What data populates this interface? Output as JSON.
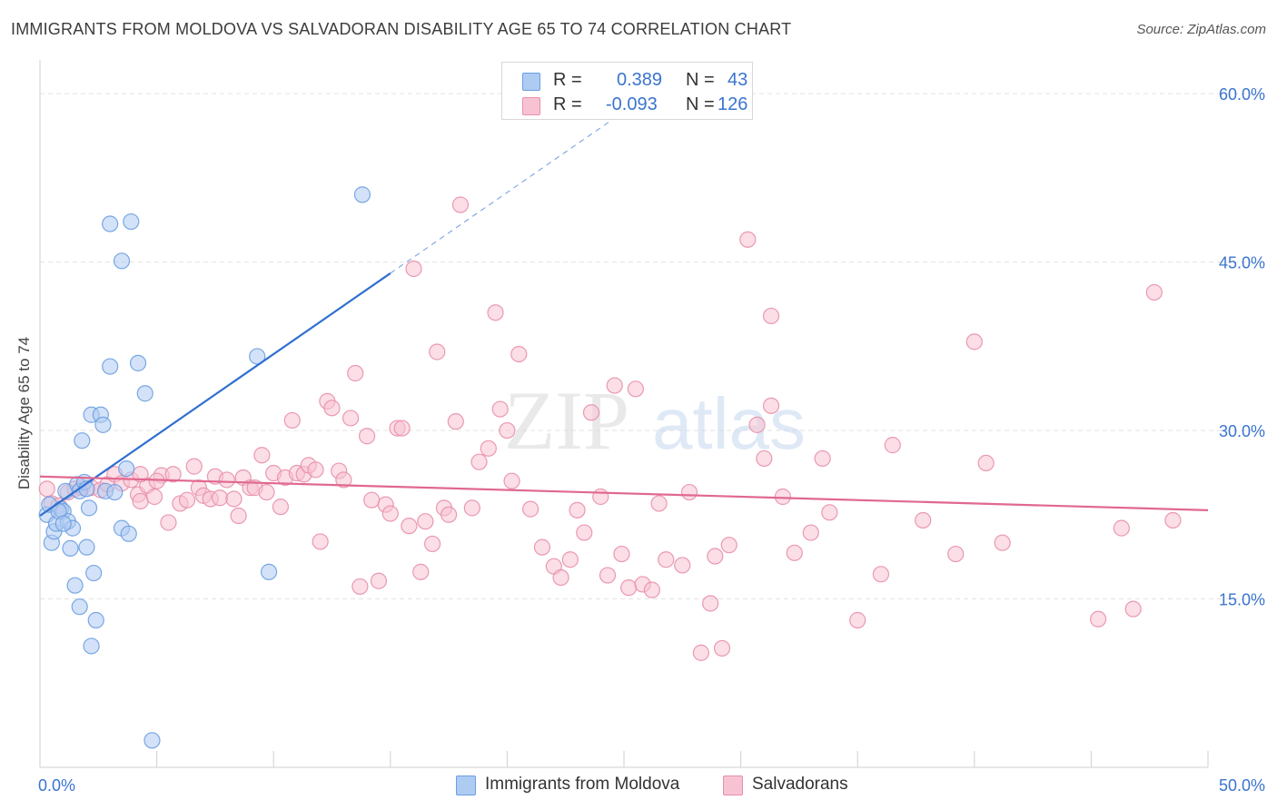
{
  "title": "IMMIGRANTS FROM MOLDOVA VS SALVADORAN DISABILITY AGE 65 TO 74 CORRELATION CHART",
  "source": "Source: ZipAtlas.com",
  "watermark": {
    "zip": "ZIP",
    "atlas": "atlas"
  },
  "legend": {
    "rows": [
      {
        "r_label": "R =",
        "r_value": "0.389",
        "n_label": "N =",
        "n_value": "43"
      },
      {
        "r_label": "R =",
        "r_value": "-0.093",
        "n_label": "N =",
        "n_value": "126"
      }
    ]
  },
  "colors": {
    "blue_fill": "#aecbf2",
    "blue_stroke": "#6b9ee0",
    "blue_line": "#2f6fcf",
    "pink_fill": "#f7c3d2",
    "pink_stroke": "#e88fab",
    "pink_line": "#e06890",
    "tick_text": "#3a74d0",
    "grid": "#e2e2e2"
  },
  "chart_data": {
    "type": "scatter",
    "title": "IMMIGRANTS FROM MOLDOVA VS SALVADORAN DISABILITY AGE 65 TO 74 CORRELATION CHART",
    "xlabel": "",
    "ylabel": "Disability Age 65 to 74",
    "xlim": [
      0,
      50
    ],
    "ylim": [
      0,
      63
    ],
    "x_tick_labels": [
      {
        "value": 0,
        "label": "0.0%"
      },
      {
        "value": 50,
        "label": "50.0%"
      }
    ],
    "y_tick_labels": [
      {
        "value": 15,
        "label": "15.0%"
      },
      {
        "value": 30,
        "label": "30.0%"
      },
      {
        "value": 45,
        "label": "45.0%"
      },
      {
        "value": 60,
        "label": "60.0%"
      }
    ],
    "y_grid": [
      15,
      30,
      45,
      60
    ],
    "grid": true,
    "legend_position": "top-center",
    "series": [
      {
        "name": "Immigrants from Moldova",
        "color": "blue",
        "R": 0.389,
        "N": 43,
        "trend": {
          "x0": 0.0,
          "y0": 22.4,
          "x1": 15.0,
          "y1": 44.0,
          "dashed_to_x": 25.0,
          "dashed_to_y": 58.4
        },
        "points": [
          [
            0.3,
            22.5
          ],
          [
            0.4,
            23.4
          ],
          [
            0.5,
            20.0
          ],
          [
            0.6,
            21.0
          ],
          [
            0.7,
            21.7
          ],
          [
            0.9,
            23.0
          ],
          [
            1.0,
            22.8
          ],
          [
            1.1,
            24.6
          ],
          [
            1.2,
            21.9
          ],
          [
            1.3,
            19.5
          ],
          [
            1.4,
            21.3
          ],
          [
            1.5,
            16.2
          ],
          [
            1.6,
            25.2
          ],
          [
            1.7,
            24.6
          ],
          [
            1.7,
            14.3
          ],
          [
            1.8,
            29.1
          ],
          [
            1.9,
            25.4
          ],
          [
            2.0,
            19.6
          ],
          [
            2.1,
            23.1
          ],
          [
            2.2,
            10.8
          ],
          [
            2.2,
            31.4
          ],
          [
            2.3,
            17.3
          ],
          [
            2.4,
            13.1
          ],
          [
            2.6,
            31.4
          ],
          [
            2.7,
            30.5
          ],
          [
            2.8,
            24.6
          ],
          [
            3.0,
            35.7
          ],
          [
            3.0,
            48.4
          ],
          [
            3.2,
            24.5
          ],
          [
            3.5,
            21.3
          ],
          [
            3.5,
            45.1
          ],
          [
            3.7,
            26.6
          ],
          [
            3.8,
            20.8
          ],
          [
            3.9,
            48.6
          ],
          [
            4.2,
            36.0
          ],
          [
            4.5,
            33.3
          ],
          [
            4.8,
            2.4
          ],
          [
            9.3,
            36.6
          ],
          [
            9.8,
            17.4
          ],
          [
            13.8,
            51.0
          ],
          [
            0.8,
            22.8
          ],
          [
            1.0,
            21.7
          ],
          [
            2.0,
            24.8
          ]
        ]
      },
      {
        "name": "Salvadorans",
        "color": "pink",
        "R": -0.093,
        "N": 126,
        "trend": {
          "x0": 0.0,
          "y0": 25.9,
          "x1": 50.0,
          "y1": 22.9
        },
        "points": [
          [
            0.3,
            24.8
          ],
          [
            0.5,
            23.5
          ],
          [
            0.8,
            23.3
          ],
          [
            1.2,
            24.5
          ],
          [
            1.5,
            24.8
          ],
          [
            1.8,
            24.9
          ],
          [
            2.2,
            24.9
          ],
          [
            2.6,
            24.7
          ],
          [
            2.9,
            25.2
          ],
          [
            3.2,
            26.1
          ],
          [
            3.5,
            25.3
          ],
          [
            3.9,
            25.6
          ],
          [
            4.2,
            24.3
          ],
          [
            4.3,
            23.7
          ],
          [
            4.6,
            25.1
          ],
          [
            4.9,
            24.1
          ],
          [
            5.2,
            26.0
          ],
          [
            5.5,
            21.8
          ],
          [
            5.7,
            26.1
          ],
          [
            6.0,
            23.5
          ],
          [
            6.3,
            23.8
          ],
          [
            6.6,
            26.8
          ],
          [
            6.8,
            24.9
          ],
          [
            7.0,
            24.2
          ],
          [
            7.3,
            23.9
          ],
          [
            7.5,
            25.9
          ],
          [
            7.7,
            24.0
          ],
          [
            8.0,
            25.6
          ],
          [
            8.3,
            23.9
          ],
          [
            8.5,
            22.4
          ],
          [
            8.7,
            25.8
          ],
          [
            9.0,
            24.9
          ],
          [
            9.2,
            24.9
          ],
          [
            9.5,
            27.8
          ],
          [
            9.7,
            24.5
          ],
          [
            10.0,
            26.2
          ],
          [
            10.3,
            23.2
          ],
          [
            10.5,
            25.8
          ],
          [
            10.8,
            30.9
          ],
          [
            11.0,
            26.2
          ],
          [
            11.3,
            26.1
          ],
          [
            11.5,
            26.9
          ],
          [
            11.8,
            26.5
          ],
          [
            12.0,
            20.1
          ],
          [
            12.3,
            32.6
          ],
          [
            12.5,
            32.0
          ],
          [
            12.8,
            26.4
          ],
          [
            13.0,
            25.6
          ],
          [
            13.3,
            31.1
          ],
          [
            13.5,
            35.1
          ],
          [
            13.7,
            16.1
          ],
          [
            14.0,
            29.5
          ],
          [
            14.2,
            23.8
          ],
          [
            14.5,
            16.6
          ],
          [
            14.8,
            23.4
          ],
          [
            15.0,
            22.6
          ],
          [
            15.3,
            30.2
          ],
          [
            15.5,
            30.2
          ],
          [
            15.8,
            21.5
          ],
          [
            16.0,
            44.4
          ],
          [
            16.3,
            17.4
          ],
          [
            16.5,
            21.9
          ],
          [
            16.8,
            19.9
          ],
          [
            17.0,
            37.0
          ],
          [
            17.3,
            23.1
          ],
          [
            17.5,
            22.5
          ],
          [
            17.8,
            30.8
          ],
          [
            18.0,
            50.1
          ],
          [
            18.5,
            23.1
          ],
          [
            18.8,
            27.2
          ],
          [
            19.2,
            28.4
          ],
          [
            19.5,
            40.5
          ],
          [
            19.7,
            31.9
          ],
          [
            20.0,
            30.0
          ],
          [
            20.2,
            25.5
          ],
          [
            20.5,
            36.8
          ],
          [
            21.0,
            23.0
          ],
          [
            21.5,
            19.6
          ],
          [
            22.0,
            17.9
          ],
          [
            22.3,
            16.9
          ],
          [
            22.7,
            18.5
          ],
          [
            23.0,
            22.9
          ],
          [
            23.3,
            20.9
          ],
          [
            23.6,
            31.6
          ],
          [
            24.0,
            24.1
          ],
          [
            24.3,
            17.1
          ],
          [
            24.6,
            34.0
          ],
          [
            24.9,
            19.0
          ],
          [
            25.2,
            16.0
          ],
          [
            25.5,
            33.7
          ],
          [
            25.8,
            16.3
          ],
          [
            26.2,
            15.8
          ],
          [
            26.5,
            23.5
          ],
          [
            26.8,
            18.5
          ],
          [
            27.5,
            18.0
          ],
          [
            27.8,
            24.5
          ],
          [
            28.3,
            10.2
          ],
          [
            28.7,
            14.6
          ],
          [
            28.9,
            18.8
          ],
          [
            29.2,
            10.6
          ],
          [
            29.5,
            19.8
          ],
          [
            30.3,
            47.0
          ],
          [
            30.7,
            30.5
          ],
          [
            31.0,
            27.5
          ],
          [
            31.3,
            40.2
          ],
          [
            31.3,
            32.2
          ],
          [
            31.8,
            24.1
          ],
          [
            32.3,
            19.1
          ],
          [
            33.0,
            20.9
          ],
          [
            33.5,
            27.5
          ],
          [
            33.8,
            22.7
          ],
          [
            35.0,
            13.1
          ],
          [
            36.0,
            17.2
          ],
          [
            36.5,
            28.7
          ],
          [
            37.8,
            22.0
          ],
          [
            39.2,
            19.0
          ],
          [
            40.0,
            37.9
          ],
          [
            40.5,
            27.1
          ],
          [
            41.2,
            20.0
          ],
          [
            45.3,
            13.2
          ],
          [
            46.3,
            21.3
          ],
          [
            46.8,
            14.1
          ],
          [
            47.7,
            42.3
          ],
          [
            48.5,
            22.0
          ],
          [
            4.3,
            26.1
          ],
          [
            5.0,
            25.5
          ]
        ]
      }
    ]
  },
  "bottom_legend": [
    "Immigrants from Moldova",
    "Salvadorans"
  ]
}
